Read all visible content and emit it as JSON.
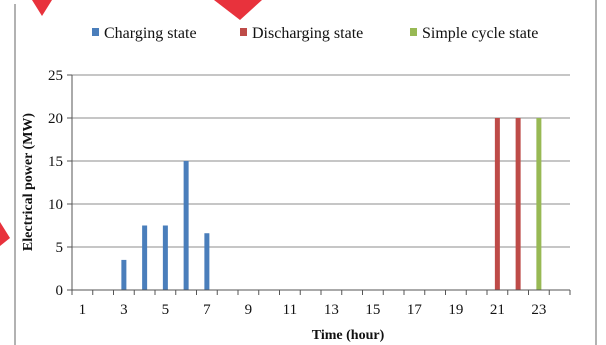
{
  "chart_data": {
    "type": "bar",
    "title": "",
    "xlabel": "Time (hour)",
    "ylabel": "Electrical power (MW)",
    "ylim": [
      0,
      25
    ],
    "yticks": [
      "0",
      "5",
      "10",
      "15",
      "20",
      "25"
    ],
    "xlim": [
      0,
      24
    ],
    "xticks": [
      "1",
      "3",
      "5",
      "7",
      "9",
      "11",
      "13",
      "15",
      "17",
      "19",
      "21",
      "23"
    ],
    "grid": "horizontal",
    "legend_position": "top",
    "series": [
      {
        "name": "Charging state",
        "color": "#4a7ebb",
        "points": [
          {
            "x": 3,
            "y": 3.5
          },
          {
            "x": 4,
            "y": 7.5
          },
          {
            "x": 5,
            "y": 7.5
          },
          {
            "x": 6,
            "y": 15
          },
          {
            "x": 7,
            "y": 6.6
          }
        ]
      },
      {
        "name": "Discharging state",
        "color": "#be4b48",
        "points": [
          {
            "x": 21,
            "y": 20
          },
          {
            "x": 22,
            "y": 20
          }
        ]
      },
      {
        "name": "Simple cycle state",
        "color": "#98b954",
        "points": [
          {
            "x": 23,
            "y": 20
          }
        ]
      }
    ]
  }
}
